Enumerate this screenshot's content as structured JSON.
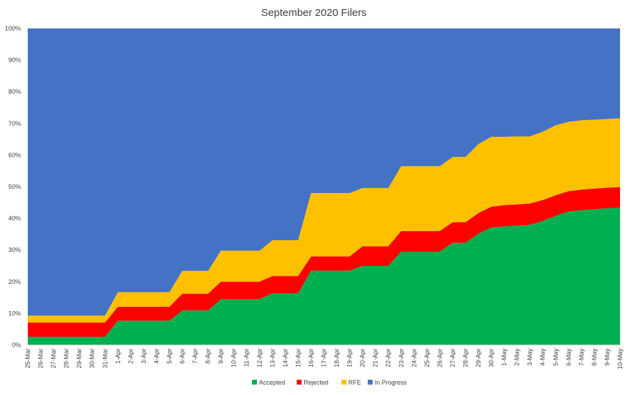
{
  "chart_data": {
    "type": "area",
    "stacked": true,
    "percent": true,
    "title": "September 2020 Filers",
    "xlabel": "",
    "ylabel": "",
    "ylim": [
      0,
      100
    ],
    "yticks": [
      "0%",
      "10%",
      "20%",
      "30%",
      "40%",
      "50%",
      "60%",
      "70%",
      "80%",
      "90%",
      "100%"
    ],
    "grid": false,
    "legend": "bottom",
    "categories": [
      "25-Mar",
      "26-Mar",
      "27-Mar",
      "28-Mar",
      "29-Mar",
      "30-Mar",
      "31-Mar",
      "1-Apr",
      "2-Apr",
      "3-Apr",
      "4-Apr",
      "5-Apr",
      "6-Apr",
      "7-Apr",
      "8-Apr",
      "9-Apr",
      "10-Apr",
      "11-Apr",
      "12-Apr",
      "13-Apr",
      "14-Apr",
      "15-Apr",
      "16-Apr",
      "17-Apr",
      "18-Apr",
      "19-Apr",
      "20-Apr",
      "21-Apr",
      "22-Apr",
      "23-Apr",
      "24-Apr",
      "25-Apr",
      "26-Apr",
      "27-Apr",
      "28-Apr",
      "29-Apr",
      "30-Apr",
      "1-May",
      "2-May",
      "3-May",
      "4-May",
      "5-May",
      "6-May",
      "7-May",
      "8-May",
      "9-May",
      "10-May"
    ],
    "series": [
      {
        "name": "Accepted",
        "color": "#00B050",
        "values": [
          2.6,
          2.6,
          2.6,
          2.6,
          2.6,
          2.6,
          2.6,
          7.7,
          7.7,
          7.7,
          7.7,
          7.7,
          10.9,
          10.9,
          10.9,
          14.5,
          14.5,
          14.5,
          14.5,
          16.3,
          16.3,
          16.3,
          23.5,
          23.5,
          23.5,
          23.5,
          25.0,
          25.0,
          25.0,
          29.5,
          29.5,
          29.5,
          29.5,
          32.3,
          32.3,
          35.2,
          37.1,
          37.5,
          37.7,
          38.0,
          39.2,
          40.8,
          42.2,
          42.6,
          42.9,
          43.2,
          43.4
        ]
      },
      {
        "name": "Rejected",
        "color": "#FF0000",
        "values": [
          4.5,
          4.5,
          4.5,
          4.5,
          4.5,
          4.5,
          4.5,
          4.4,
          4.4,
          4.4,
          4.4,
          4.4,
          5.3,
          5.3,
          5.3,
          5.5,
          5.5,
          5.5,
          5.5,
          5.5,
          5.5,
          5.5,
          4.5,
          4.5,
          4.5,
          4.5,
          6.2,
          6.2,
          6.2,
          6.5,
          6.5,
          6.5,
          6.5,
          6.5,
          6.5,
          6.5,
          6.6,
          6.7,
          6.7,
          6.7,
          6.6,
          6.5,
          6.4,
          6.5,
          6.5,
          6.5,
          6.5
        ]
      },
      {
        "name": "RFE",
        "color": "#FFC000",
        "values": [
          2.2,
          2.2,
          2.2,
          2.2,
          2.2,
          2.2,
          2.2,
          4.6,
          4.6,
          4.6,
          4.6,
          4.6,
          7.2,
          7.2,
          7.2,
          9.8,
          9.8,
          9.8,
          9.8,
          11.3,
          11.3,
          11.3,
          20.0,
          20.0,
          20.0,
          20.0,
          18.4,
          18.4,
          18.4,
          20.5,
          20.5,
          20.5,
          20.5,
          20.6,
          20.6,
          21.8,
          22.1,
          21.6,
          21.5,
          21.2,
          21.6,
          22.1,
          21.9,
          21.9,
          21.8,
          21.7,
          21.7
        ]
      },
      {
        "name": "In Progress",
        "color": "#4472C4",
        "values": [
          90.7,
          90.7,
          90.7,
          90.7,
          90.7,
          90.7,
          90.7,
          83.3,
          83.3,
          83.3,
          83.3,
          83.3,
          76.6,
          76.6,
          76.6,
          70.2,
          70.2,
          70.2,
          70.2,
          66.9,
          66.9,
          66.9,
          52.0,
          52.0,
          52.0,
          52.0,
          50.4,
          50.4,
          50.4,
          43.5,
          43.5,
          43.5,
          43.5,
          40.6,
          40.6,
          36.5,
          34.2,
          34.2,
          34.1,
          34.1,
          32.6,
          30.6,
          29.5,
          29.0,
          28.8,
          28.6,
          28.4
        ]
      }
    ]
  }
}
